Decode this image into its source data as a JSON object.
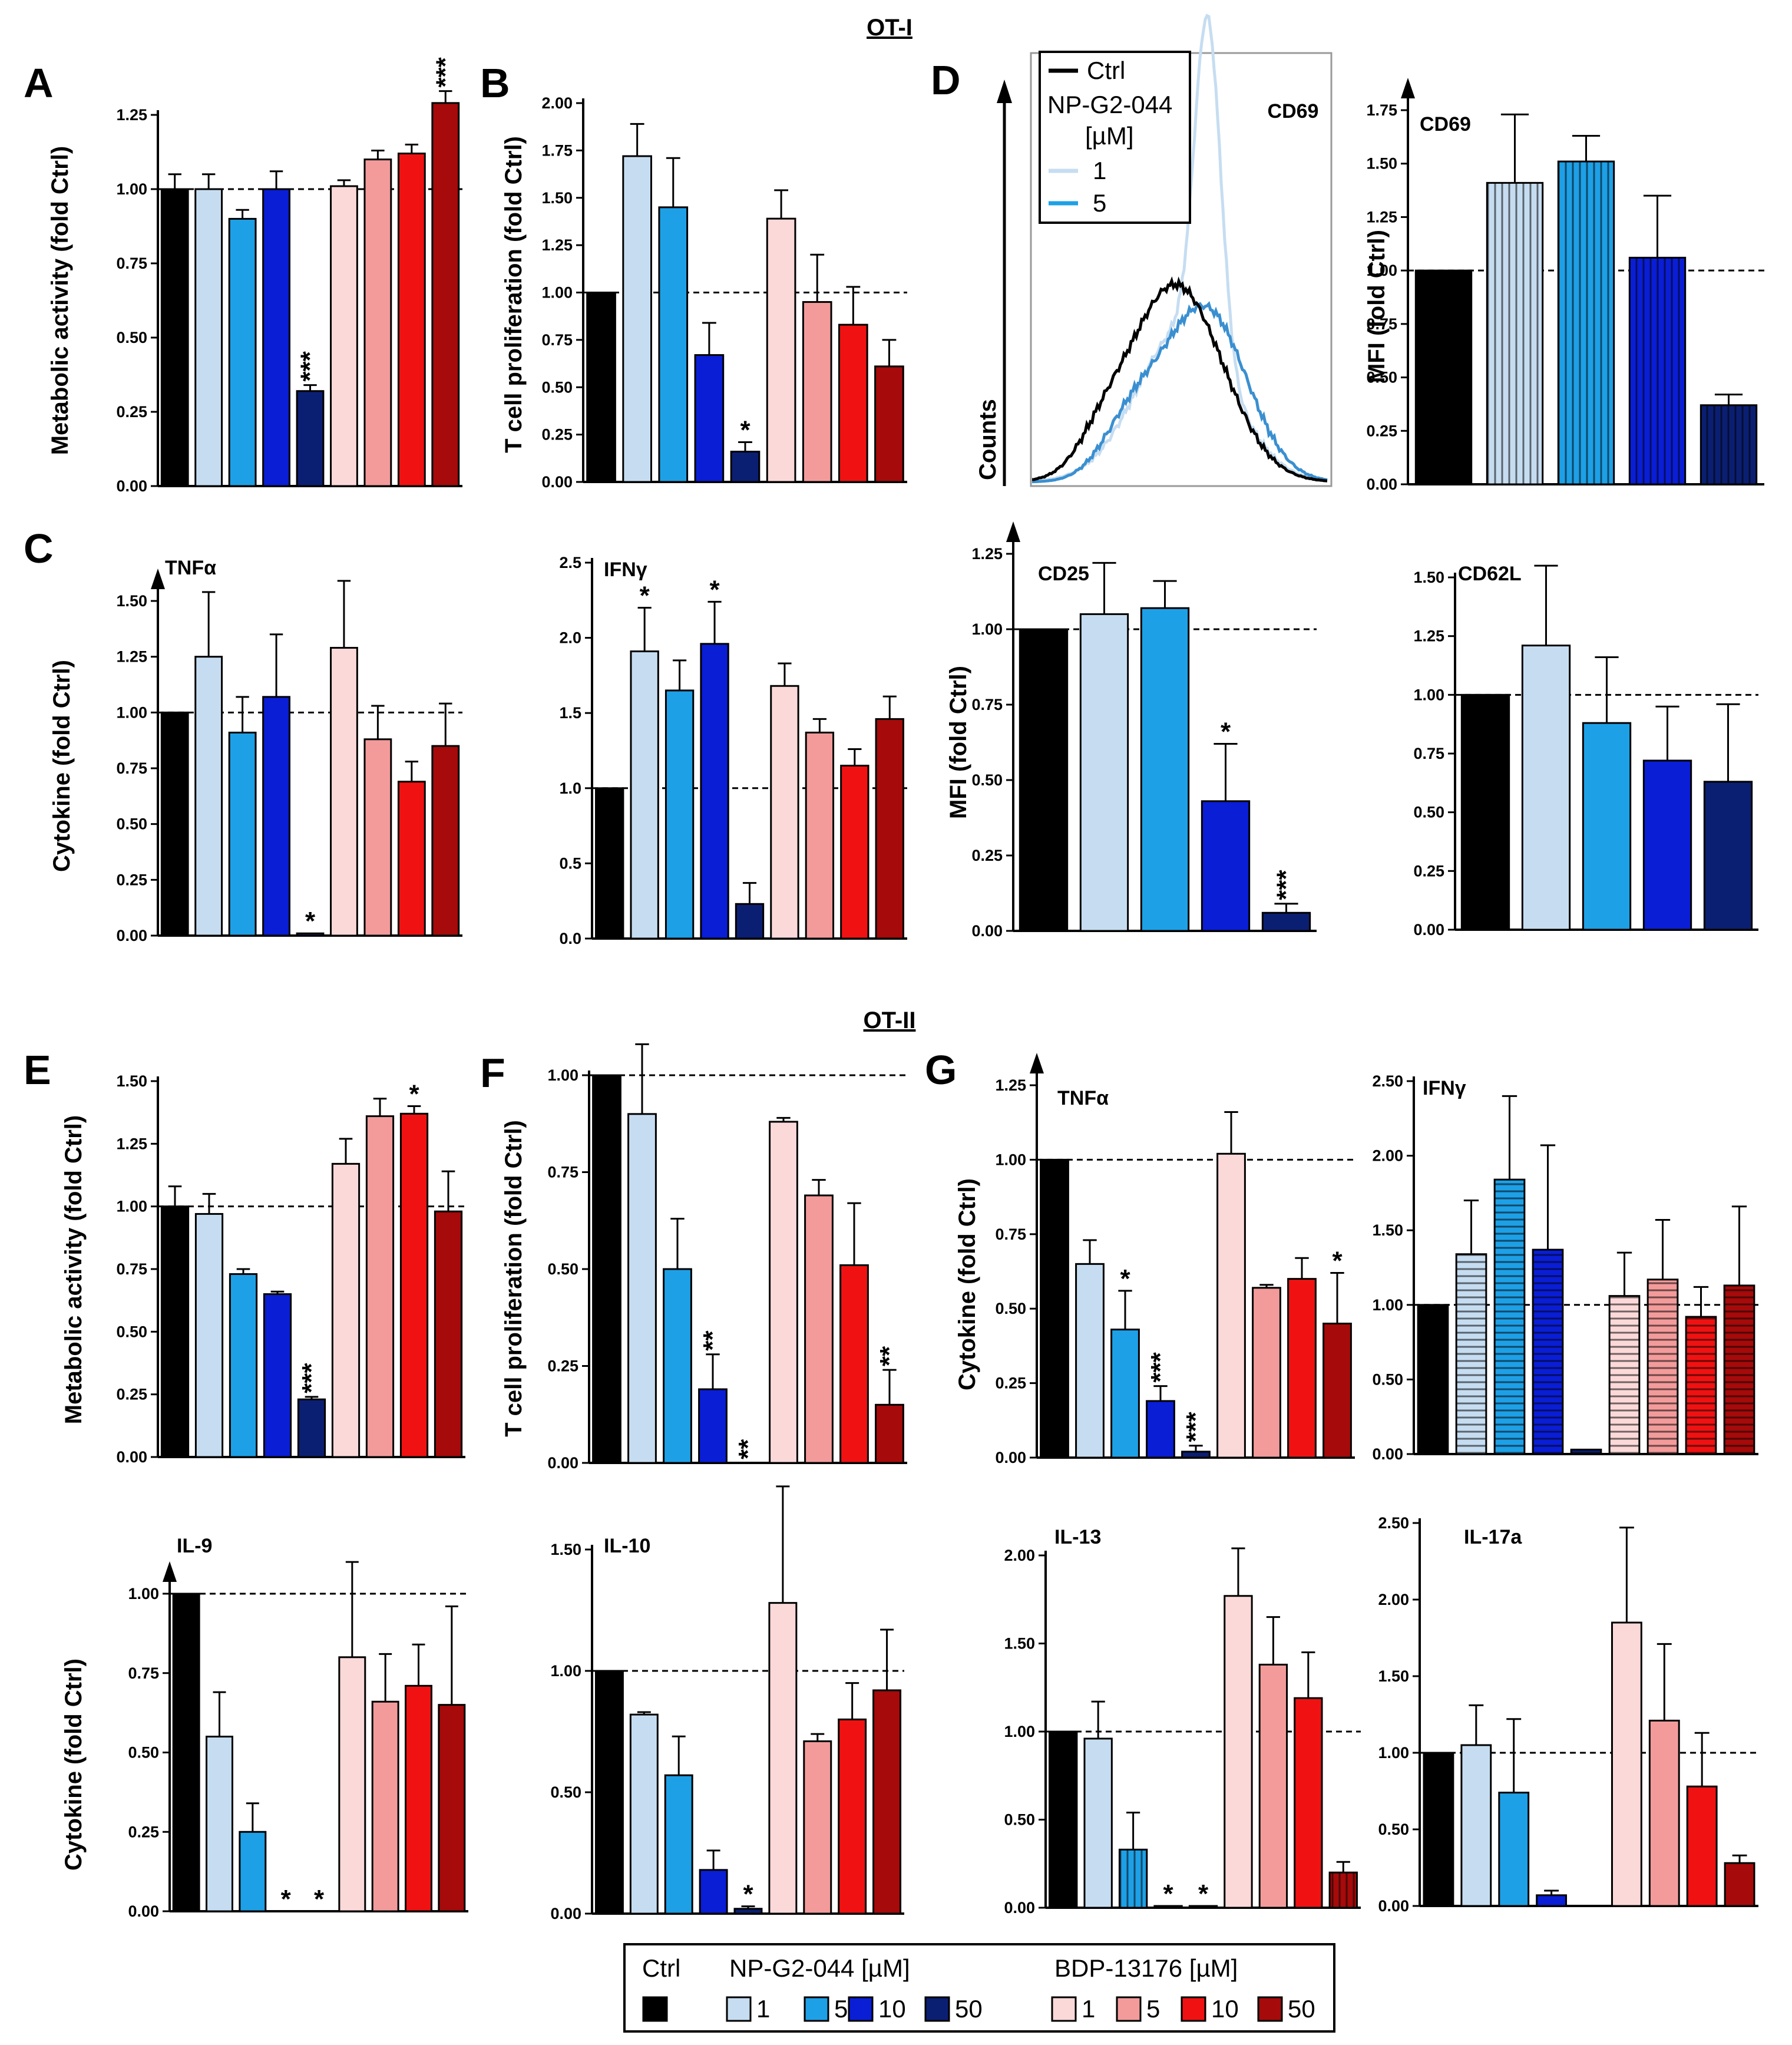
{
  "colors": {
    "ctrl": "#000000",
    "np": [
      "#c6ddf1",
      "#1ea0e6",
      "#0a1ed6",
      "#0b1f72"
    ],
    "bdp": [
      "#fcd9d9",
      "#f39b9b",
      "#f01212",
      "#a60a0a"
    ]
  },
  "section_titles": {
    "ot1": "OT-I",
    "ot2": "OT-II"
  },
  "panel_letters": [
    "A",
    "B",
    "C",
    "D",
    "E",
    "F",
    "G"
  ],
  "flow_histogram": {
    "marker": "CD69",
    "ylabel": "Counts",
    "legend": {
      "ctrl": "Ctrl",
      "compound": "NP-G2-044",
      "unit": "[µM]",
      "doses": [
        "1",
        "5"
      ]
    }
  },
  "legend": {
    "ctrl": "Ctrl",
    "np_title": "NP-G2-044 [µM]",
    "bdp_title": "BDP-13176 [µM]",
    "np_doses": [
      "1",
      "5",
      "10",
      "50"
    ],
    "bdp_doses": [
      "1",
      "5",
      "10",
      "50"
    ]
  },
  "chart_data": [
    {
      "id": "A",
      "type": "bar",
      "ylabel": "Metabolic activity (fold Ctrl)",
      "ylim": [
        0,
        1.25
      ],
      "yticks": [
        "0.00",
        "0.25",
        "0.50",
        "0.75",
        "1.00",
        "1.25"
      ],
      "reference_line": 1.0,
      "groups": [
        "Ctrl",
        "NP-G2-044 1",
        "NP-G2-044 5",
        "NP-G2-044 10",
        "NP-G2-044 50",
        "BDP-13176 1",
        "BDP-13176 5",
        "BDP-13176 10",
        "BDP-13176 50"
      ],
      "values": [
        1.0,
        1.0,
        0.9,
        1.0,
        0.32,
        1.01,
        1.1,
        1.12,
        1.29
      ],
      "errors": [
        0.05,
        0.05,
        0.03,
        0.06,
        0.02,
        0.02,
        0.03,
        0.03,
        0.04
      ],
      "significance": [
        "",
        "",
        "",
        "",
        "***",
        "",
        "",
        "",
        "***"
      ]
    },
    {
      "id": "B",
      "type": "bar",
      "ylabel": "T cell proliferation (fold Ctrl)",
      "ylim": [
        0,
        2.0
      ],
      "yticks": [
        "0.00",
        "0.25",
        "0.50",
        "0.75",
        "1.00",
        "1.25",
        "1.50",
        "1.75",
        "2.00"
      ],
      "reference_line": 1.0,
      "groups": [
        "Ctrl",
        "NP-G2-044 1",
        "NP-G2-044 5",
        "NP-G2-044 10",
        "NP-G2-044 50",
        "BDP-13176 1",
        "BDP-13176 5",
        "BDP-13176 10",
        "BDP-13176 50"
      ],
      "values": [
        1.0,
        1.72,
        1.45,
        0.67,
        0.16,
        1.39,
        0.95,
        0.83,
        0.61
      ],
      "errors": [
        0,
        0.17,
        0.26,
        0.17,
        0.05,
        0.15,
        0.25,
        0.2,
        0.14
      ],
      "significance": [
        "",
        "",
        "",
        "",
        "*",
        "",
        "",
        "",
        ""
      ]
    },
    {
      "id": "C-TNFa",
      "type": "bar",
      "label": "TNFα",
      "ylabel": "Cytokine (fold Ctrl)",
      "ylim": [
        0,
        1.5
      ],
      "yticks": [
        "0.00",
        "0.25",
        "0.50",
        "0.75",
        "1.00",
        "1.25",
        "1.50"
      ],
      "reference_line": 1.0,
      "groups": [
        "Ctrl",
        "NP-G2-044 1",
        "NP-G2-044 5",
        "NP-G2-044 10",
        "NP-G2-044 50",
        "BDP-13176 1",
        "BDP-13176 5",
        "BDP-13176 10",
        "BDP-13176 50"
      ],
      "values": [
        1.0,
        1.25,
        0.91,
        1.07,
        0.01,
        1.29,
        0.88,
        0.69,
        0.85
      ],
      "errors": [
        0,
        0.29,
        0.16,
        0.28,
        0,
        0.3,
        0.15,
        0.09,
        0.19
      ],
      "significance": [
        "",
        "",
        "",
        "",
        "*",
        "",
        "",
        "",
        ""
      ]
    },
    {
      "id": "C-IFNg",
      "type": "bar",
      "label": "IFNγ",
      "ylabel": "",
      "ylim": [
        0,
        2.5
      ],
      "yticks": [
        "0.0",
        "0.5",
        "1.0",
        "1.5",
        "2.0",
        "2.5"
      ],
      "reference_line": 1.0,
      "groups": [
        "Ctrl",
        "NP-G2-044 1",
        "NP-G2-044 5",
        "NP-G2-044 10",
        "NP-G2-044 50",
        "BDP-13176 1",
        "BDP-13176 5",
        "BDP-13176 10",
        "BDP-13176 50"
      ],
      "values": [
        1.0,
        1.91,
        1.65,
        1.96,
        0.23,
        1.68,
        1.37,
        1.15,
        1.46
      ],
      "errors": [
        0,
        0.29,
        0.2,
        0.28,
        0.14,
        0.15,
        0.09,
        0.11,
        0.15
      ],
      "significance": [
        "",
        "*",
        "",
        "*",
        "",
        "",
        "",
        "",
        ""
      ]
    },
    {
      "id": "D-CD69",
      "type": "bar",
      "label": "CD69",
      "ylabel": "MFI (fold Ctrl)",
      "ylim": [
        0,
        1.75
      ],
      "yticks": [
        "0.00",
        "0.25",
        "0.50",
        "0.75",
        "1.00",
        "1.25",
        "1.50",
        "1.75"
      ],
      "reference_line": 1.0,
      "groups": [
        "Ctrl",
        "NP-G2-044 1",
        "NP-G2-044 5",
        "NP-G2-044 10",
        "NP-G2-044 50"
      ],
      "values": [
        1.0,
        1.41,
        1.51,
        1.06,
        0.37
      ],
      "errors": [
        0,
        0.32,
        0.12,
        0.29,
        0.05
      ],
      "significance": [
        "",
        "",
        "",
        "",
        ""
      ]
    },
    {
      "id": "D-CD25",
      "type": "bar",
      "label": "CD25",
      "ylabel": "MFI (fold Ctrl)",
      "ylim": [
        0,
        1.25
      ],
      "yticks": [
        "0.00",
        "0.25",
        "0.50",
        "0.75",
        "1.00",
        "1.25"
      ],
      "reference_line": 1.0,
      "groups": [
        "Ctrl",
        "NP-G2-044 1",
        "NP-G2-044 5",
        "NP-G2-044 10",
        "NP-G2-044 50"
      ],
      "values": [
        1.0,
        1.05,
        1.07,
        0.43,
        0.06
      ],
      "errors": [
        0,
        0.17,
        0.09,
        0.19,
        0.03
      ],
      "significance": [
        "",
        "",
        "",
        "*",
        "***"
      ]
    },
    {
      "id": "D-CD62L",
      "type": "bar",
      "label": "CD62L",
      "ylabel": "",
      "ylim": [
        0,
        1.5
      ],
      "yticks": [
        "0.00",
        "0.25",
        "0.50",
        "0.75",
        "1.00",
        "1.25",
        "1.50"
      ],
      "reference_line": 1.0,
      "groups": [
        "Ctrl",
        "NP-G2-044 1",
        "NP-G2-044 5",
        "NP-G2-044 10",
        "NP-G2-044 50"
      ],
      "values": [
        1.0,
        1.21,
        0.88,
        0.72,
        0.63
      ],
      "errors": [
        0,
        0.34,
        0.28,
        0.23,
        0.33
      ],
      "significance": [
        "",
        "",
        "",
        "",
        ""
      ]
    },
    {
      "id": "E",
      "type": "bar",
      "ylabel": "Metabolic activity (fold Ctrl)",
      "ylim": [
        0,
        1.5
      ],
      "yticks": [
        "0.00",
        "0.25",
        "0.50",
        "0.75",
        "1.00",
        "1.25",
        "1.50"
      ],
      "reference_line": 1.0,
      "groups": [
        "Ctrl",
        "NP-G2-044 1",
        "NP-G2-044 5",
        "NP-G2-044 10",
        "NP-G2-044 50",
        "BDP-13176 1",
        "BDP-13176 5",
        "BDP-13176 10",
        "BDP-13176 50"
      ],
      "values": [
        1.0,
        0.97,
        0.73,
        0.65,
        0.23,
        1.17,
        1.36,
        1.37,
        0.98
      ],
      "errors": [
        0.08,
        0.08,
        0.02,
        0.01,
        0.01,
        0.1,
        0.07,
        0.03,
        0.16
      ],
      "significance": [
        "",
        "",
        "",
        "",
        "***",
        "",
        "",
        "*",
        ""
      ]
    },
    {
      "id": "F",
      "type": "bar",
      "ylabel": "T cell proliferation (fold Ctrl)",
      "ylim": [
        0,
        1.0
      ],
      "yticks": [
        "0.00",
        "0.25",
        "0.50",
        "0.75",
        "1.00"
      ],
      "reference_line": 1.0,
      "groups": [
        "Ctrl",
        "NP-G2-044 1",
        "NP-G2-044 5",
        "NP-G2-044 10",
        "NP-G2-044 50",
        "BDP-13176 1",
        "BDP-13176 5",
        "BDP-13176 10",
        "BDP-13176 50"
      ],
      "values": [
        1.0,
        0.9,
        0.5,
        0.19,
        0.0,
        0.88,
        0.69,
        0.51,
        0.15
      ],
      "errors": [
        0,
        0.18,
        0.13,
        0.09,
        0,
        0.01,
        0.04,
        0.16,
        0.09
      ],
      "significance": [
        "",
        "",
        "",
        "**",
        "**",
        "",
        "",
        "",
        "**"
      ]
    },
    {
      "id": "G-TNFa",
      "type": "bar",
      "label": "TNFα",
      "ylabel": "Cytokine (fold Ctrl)",
      "ylim": [
        0,
        1.25
      ],
      "yticks": [
        "0.00",
        "0.25",
        "0.50",
        "0.75",
        "1.00",
        "1.25"
      ],
      "reference_line": 1.0,
      "groups": [
        "Ctrl",
        "NP-G2-044 1",
        "NP-G2-044 5",
        "NP-G2-044 10",
        "NP-G2-044 50",
        "BDP-13176 1",
        "BDP-13176 5",
        "BDP-13176 10",
        "BDP-13176 50"
      ],
      "values": [
        1.0,
        0.65,
        0.43,
        0.19,
        0.02,
        1.02,
        0.57,
        0.6,
        0.45
      ],
      "errors": [
        0,
        0.08,
        0.13,
        0.05,
        0.02,
        0.14,
        0.01,
        0.07,
        0.17
      ],
      "significance": [
        "",
        "",
        "*",
        "***",
        "***",
        "",
        "",
        "",
        "*"
      ]
    },
    {
      "id": "G-IFNg",
      "type": "bar",
      "label": "IFNγ",
      "ylabel": "",
      "ylim": [
        0,
        2.5
      ],
      "yticks": [
        "0.00",
        "0.50",
        "1.00",
        "1.50",
        "2.00",
        "2.50"
      ],
      "reference_line": 1.0,
      "groups": [
        "Ctrl",
        "NP-G2-044 1",
        "NP-G2-044 5",
        "NP-G2-044 10",
        "NP-G2-044 50",
        "BDP-13176 1",
        "BDP-13176 5",
        "BDP-13176 10",
        "BDP-13176 50"
      ],
      "values": [
        1.0,
        1.34,
        1.84,
        1.37,
        0.03,
        1.06,
        1.17,
        0.92,
        1.13
      ],
      "errors": [
        0,
        0.36,
        0.56,
        0.7,
        0,
        0.29,
        0.4,
        0.2,
        0.53
      ],
      "significance": [
        "",
        "",
        "",
        "",
        "",
        "",
        "",
        "",
        ""
      ]
    },
    {
      "id": "IL-9",
      "type": "bar",
      "label": "IL-9",
      "ylabel": "Cytokine (fold Ctrl)",
      "ylim": [
        0,
        1.0
      ],
      "yticks": [
        "0.00",
        "0.25",
        "0.50",
        "0.75",
        "1.00"
      ],
      "reference_line": 1.0,
      "groups": [
        "Ctrl",
        "NP-G2-044 1",
        "NP-G2-044 5",
        "NP-G2-044 10",
        "NP-G2-044 50",
        "BDP-13176 1",
        "BDP-13176 5",
        "BDP-13176 10",
        "BDP-13176 50"
      ],
      "values": [
        1.0,
        0.55,
        0.25,
        0.0,
        0.0,
        0.8,
        0.66,
        0.71,
        0.65
      ],
      "errors": [
        0,
        0.14,
        0.09,
        0,
        0,
        0.3,
        0.15,
        0.13,
        0.31
      ],
      "significance": [
        "",
        "",
        "",
        "*",
        "*",
        "",
        "",
        "",
        ""
      ]
    },
    {
      "id": "IL-10",
      "type": "bar",
      "label": "IL-10",
      "ylabel": "",
      "ylim": [
        0,
        1.5
      ],
      "yticks": [
        "0.00",
        "0.50",
        "1.00",
        "1.50"
      ],
      "reference_line": 1.0,
      "groups": [
        "Ctrl",
        "NP-G2-044 1",
        "NP-G2-044 5",
        "NP-G2-044 10",
        "NP-G2-044 50",
        "BDP-13176 1",
        "BDP-13176 5",
        "BDP-13176 10",
        "BDP-13176 50"
      ],
      "values": [
        1.0,
        0.82,
        0.57,
        0.18,
        0.02,
        1.28,
        0.71,
        0.8,
        0.92
      ],
      "errors": [
        0,
        0.01,
        0.16,
        0.08,
        0.01,
        0.48,
        0.03,
        0.15,
        0.25
      ],
      "significance": [
        "",
        "",
        "",
        "",
        "*",
        "",
        "",
        "",
        ""
      ]
    },
    {
      "id": "IL-13",
      "type": "bar",
      "label": "IL-13",
      "ylabel": "",
      "ylim": [
        0,
        2.0
      ],
      "yticks": [
        "0.00",
        "0.50",
        "1.00",
        "1.50",
        "2.00"
      ],
      "reference_line": 1.0,
      "groups": [
        "Ctrl",
        "NP-G2-044 1",
        "NP-G2-044 5",
        "NP-G2-044 10",
        "NP-G2-044 50",
        "BDP-13176 1",
        "BDP-13176 5",
        "BDP-13176 10",
        "BDP-13176 50"
      ],
      "values": [
        1.0,
        0.96,
        0.33,
        0.01,
        0.01,
        1.77,
        1.38,
        1.19,
        0.2
      ],
      "errors": [
        0,
        0.21,
        0.21,
        0,
        0,
        0.27,
        0.27,
        0.26,
        0.06
      ],
      "significance": [
        "",
        "",
        "",
        "*",
        "*",
        "",
        "",
        "",
        ""
      ]
    },
    {
      "id": "IL-17a",
      "type": "bar",
      "label": "IL-17a",
      "ylabel": "",
      "ylim": [
        0,
        2.5
      ],
      "yticks": [
        "0.00",
        "0.50",
        "1.00",
        "1.50",
        "2.00",
        "2.50"
      ],
      "reference_line": 1.0,
      "groups": [
        "Ctrl",
        "NP-G2-044 1",
        "NP-G2-044 5",
        "NP-G2-044 10",
        "NP-G2-044 50",
        "BDP-13176 1",
        "BDP-13176 5",
        "BDP-13176 10",
        "BDP-13176 50"
      ],
      "values": [
        1.0,
        1.05,
        0.74,
        0.07,
        0.0,
        1.85,
        1.21,
        0.78,
        0.28
      ],
      "errors": [
        0,
        0.26,
        0.48,
        0.03,
        0,
        0.62,
        0.5,
        0.35,
        0.05
      ],
      "significance": [
        "",
        "",
        "",
        "",
        "",
        "",
        "",
        "",
        ""
      ]
    }
  ]
}
